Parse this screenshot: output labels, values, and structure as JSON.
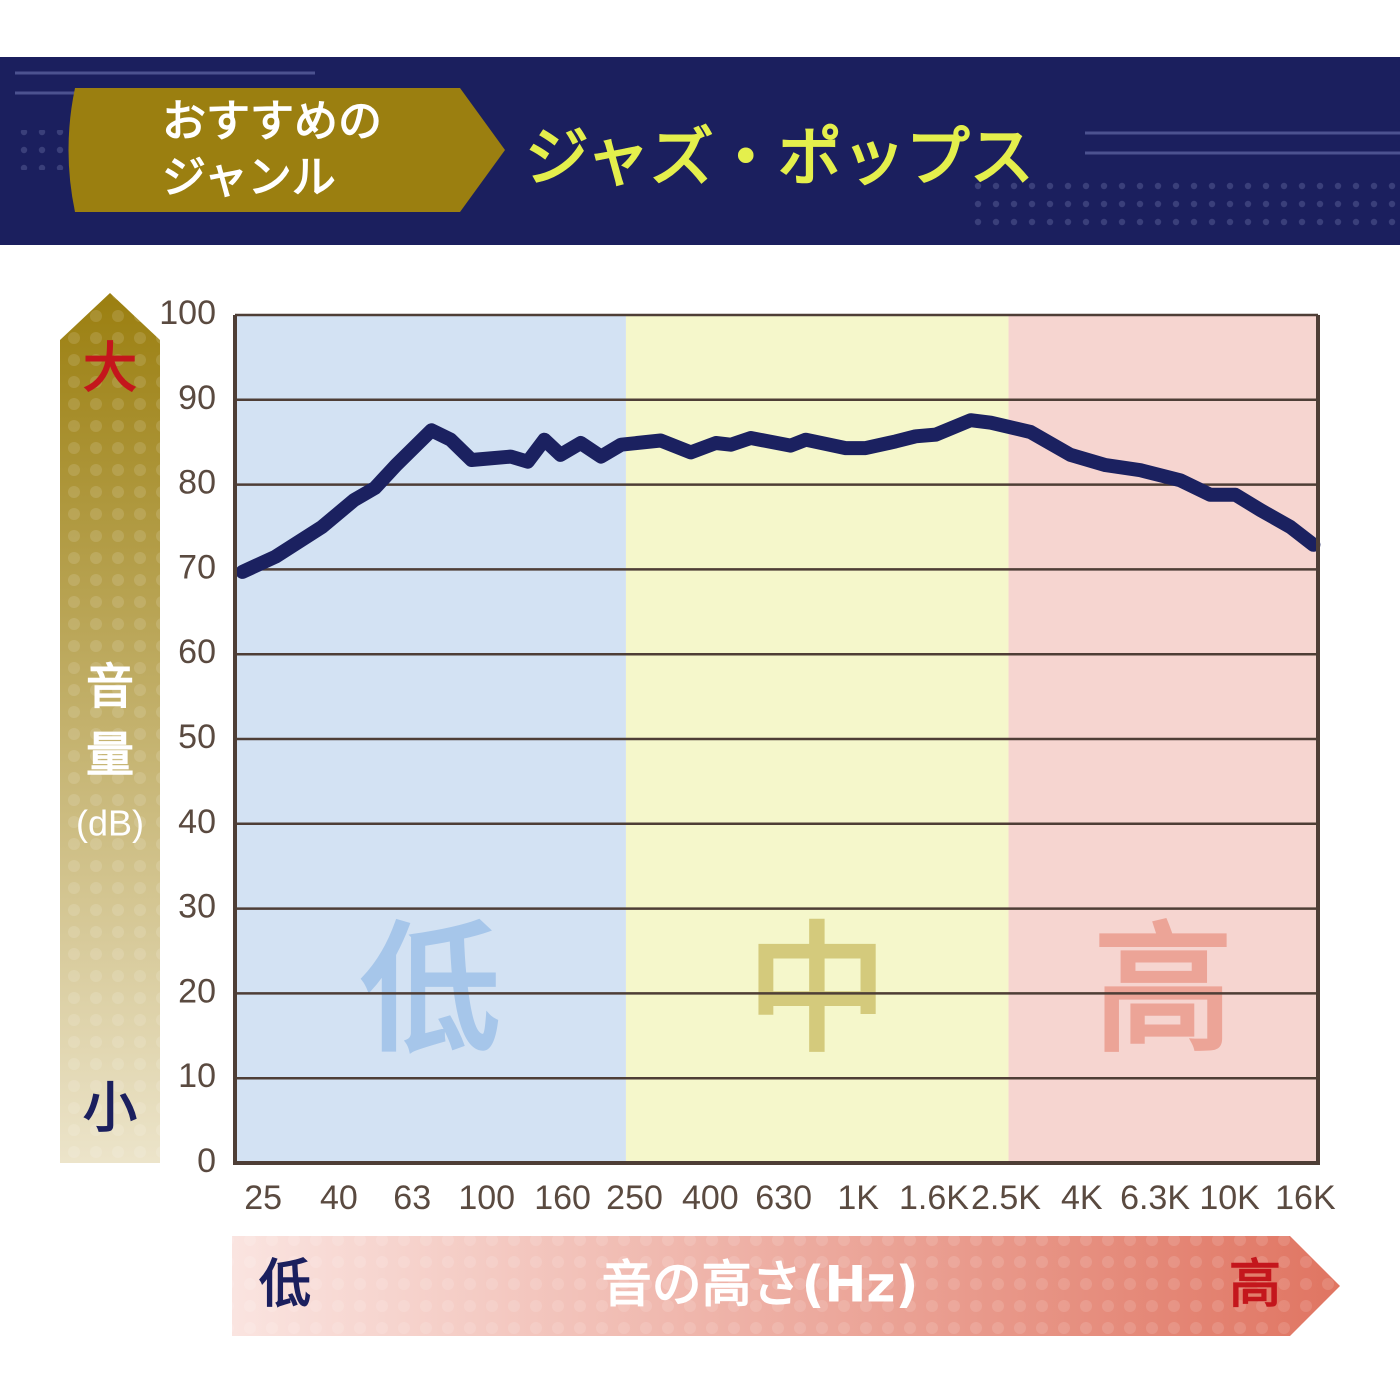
{
  "header": {
    "badge": [
      "おすすめの",
      "ジャンル"
    ],
    "genre": "ジャズ・ポップス"
  },
  "chart_data": {
    "type": "line",
    "x": [
      22,
      27,
      36,
      44,
      50,
      57,
      71,
      80,
      91,
      116,
      129,
      143,
      158,
      179,
      203,
      230,
      294,
      354,
      414,
      454,
      514,
      658,
      723,
      925,
      1047,
      1262,
      1429,
      1618,
      2009,
      2275,
      2911,
      3733,
      4634,
      5754,
      7379,
      8872,
      10375,
      12104,
      14580,
      16814
    ],
    "series": [
      {
        "color": "#1b2160",
        "values": [
          69.7,
          71.5,
          75,
          78.2,
          79.6,
          82.3,
          86.4,
          85.3,
          82.9,
          83.3,
          82.7,
          85.3,
          83.5,
          84.9,
          83.3,
          84.7,
          85.2,
          83.8,
          84.9,
          84.7,
          85.5,
          84.6,
          85.3,
          84.3,
          84.3,
          85.1,
          85.7,
          85.9,
          87.6,
          87.3,
          86.2,
          83.5,
          82.3,
          81.7,
          80.5,
          78.8,
          78.8,
          77,
          75,
          72.9
        ]
      }
    ],
    "log_x": true,
    "xlim": [
      21,
      17300
    ],
    "xticks": [
      25,
      40,
      63,
      100,
      160,
      250,
      400,
      630,
      {
        "value": 1000,
        "label": "1K"
      },
      {
        "value": 1600,
        "label": "1.6K"
      },
      {
        "value": 2500,
        "label": "2.5K"
      },
      {
        "value": 4000,
        "label": "4K"
      },
      {
        "value": 6300,
        "label": "6.3K"
      },
      {
        "value": 10000,
        "label": "10K"
      },
      {
        "value": 16000,
        "label": "16K"
      }
    ],
    "ylim": [
      0,
      100
    ],
    "yticks": [
      0,
      10,
      20,
      30,
      40,
      50,
      60,
      70,
      80,
      90,
      100
    ],
    "grid": true,
    "bands": [
      {
        "label": "低",
        "from": 21,
        "to": 237,
        "color": "#d3e2f3",
        "label_color": "#a6c6ea"
      },
      {
        "label": "中",
        "from": 237,
        "to": 2540,
        "color": "#f5f7cb",
        "label_color": "#d4ca7c"
      },
      {
        "label": "高",
        "from": 2540,
        "to": 17300,
        "color": "#f6d5d0",
        "label_color": "#eca497"
      }
    ],
    "y_label": {
      "high": "大",
      "title": [
        "音",
        "量"
      ],
      "unit": "(dB)",
      "low": "小"
    },
    "x_label": {
      "low": "低",
      "title": "音の高さ(Hz)",
      "high": "高"
    }
  }
}
